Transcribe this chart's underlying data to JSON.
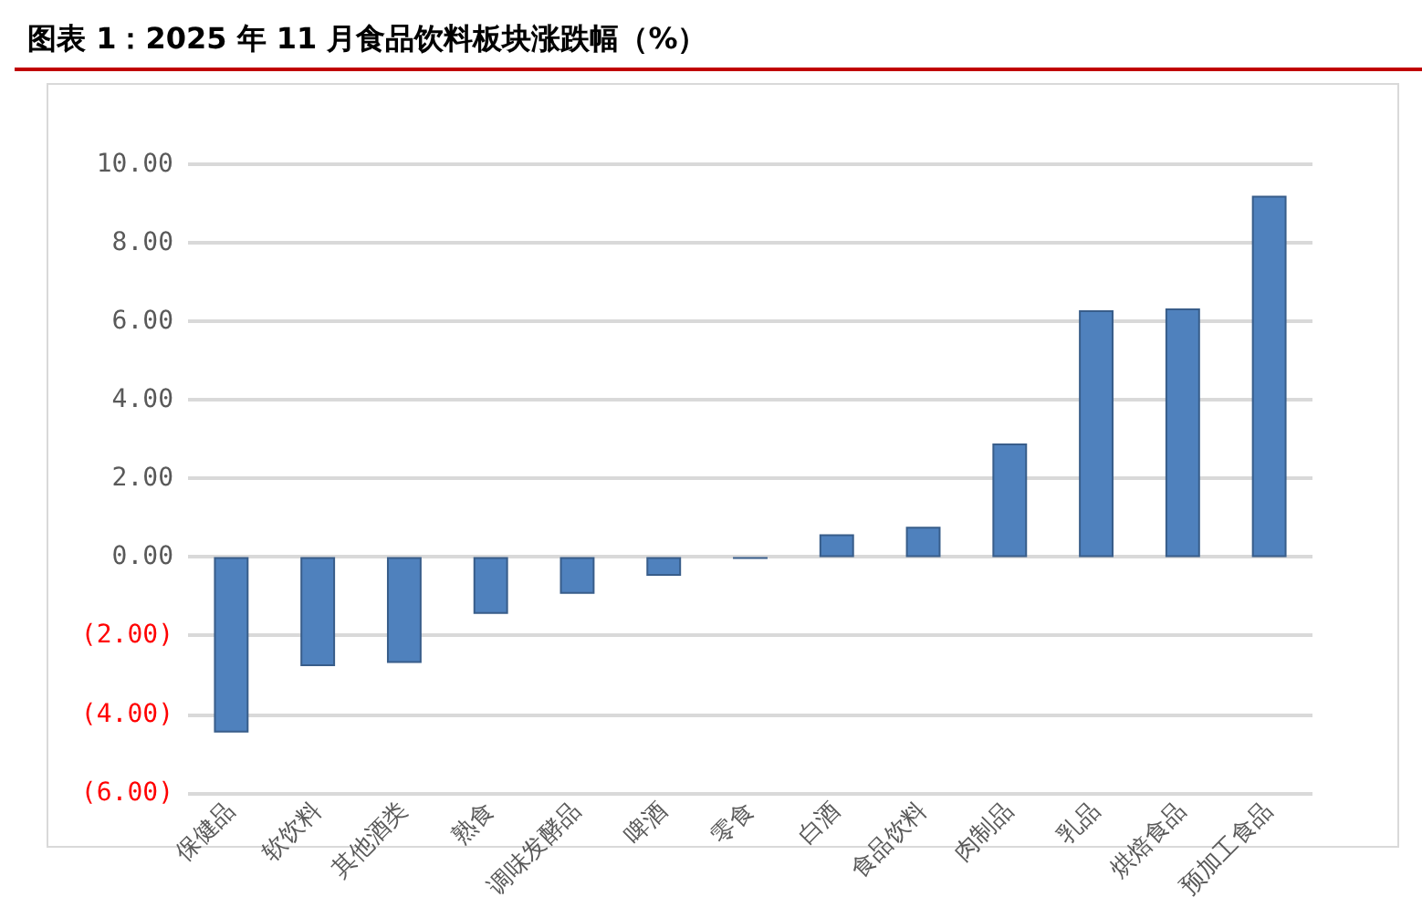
{
  "chart_data": {
    "type": "bar",
    "title": "图表 1：2025 年 11 月食品饮料板块涨跌幅（%）",
    "categories": [
      "保健品",
      "软饮料",
      "其他酒类",
      "熟食",
      "调味发酵品",
      "啤酒",
      "零食",
      "白酒",
      "食品饮料",
      "肉制品",
      "乳品",
      "烘焙食品",
      "预加工食品"
    ],
    "values": [
      -4.47,
      -2.78,
      -2.7,
      -1.45,
      -0.94,
      -0.48,
      -0.05,
      0.58,
      0.77,
      2.89,
      6.28,
      6.33,
      9.2
    ],
    "color": "#4f81bd",
    "ylim": [
      -6,
      10
    ],
    "yticks": [
      {
        "value": -6,
        "label": "(6.00)"
      },
      {
        "value": -4,
        "label": "(4.00)"
      },
      {
        "value": -2,
        "label": "(2.00)"
      },
      {
        "value": 0,
        "label": "0.00"
      },
      {
        "value": 2,
        "label": "2.00"
      },
      {
        "value": 4,
        "label": "4.00"
      },
      {
        "value": 6,
        "label": "6.00"
      },
      {
        "value": 8,
        "label": "8.00"
      },
      {
        "value": 10,
        "label": "10.00"
      }
    ],
    "grid": "y"
  }
}
